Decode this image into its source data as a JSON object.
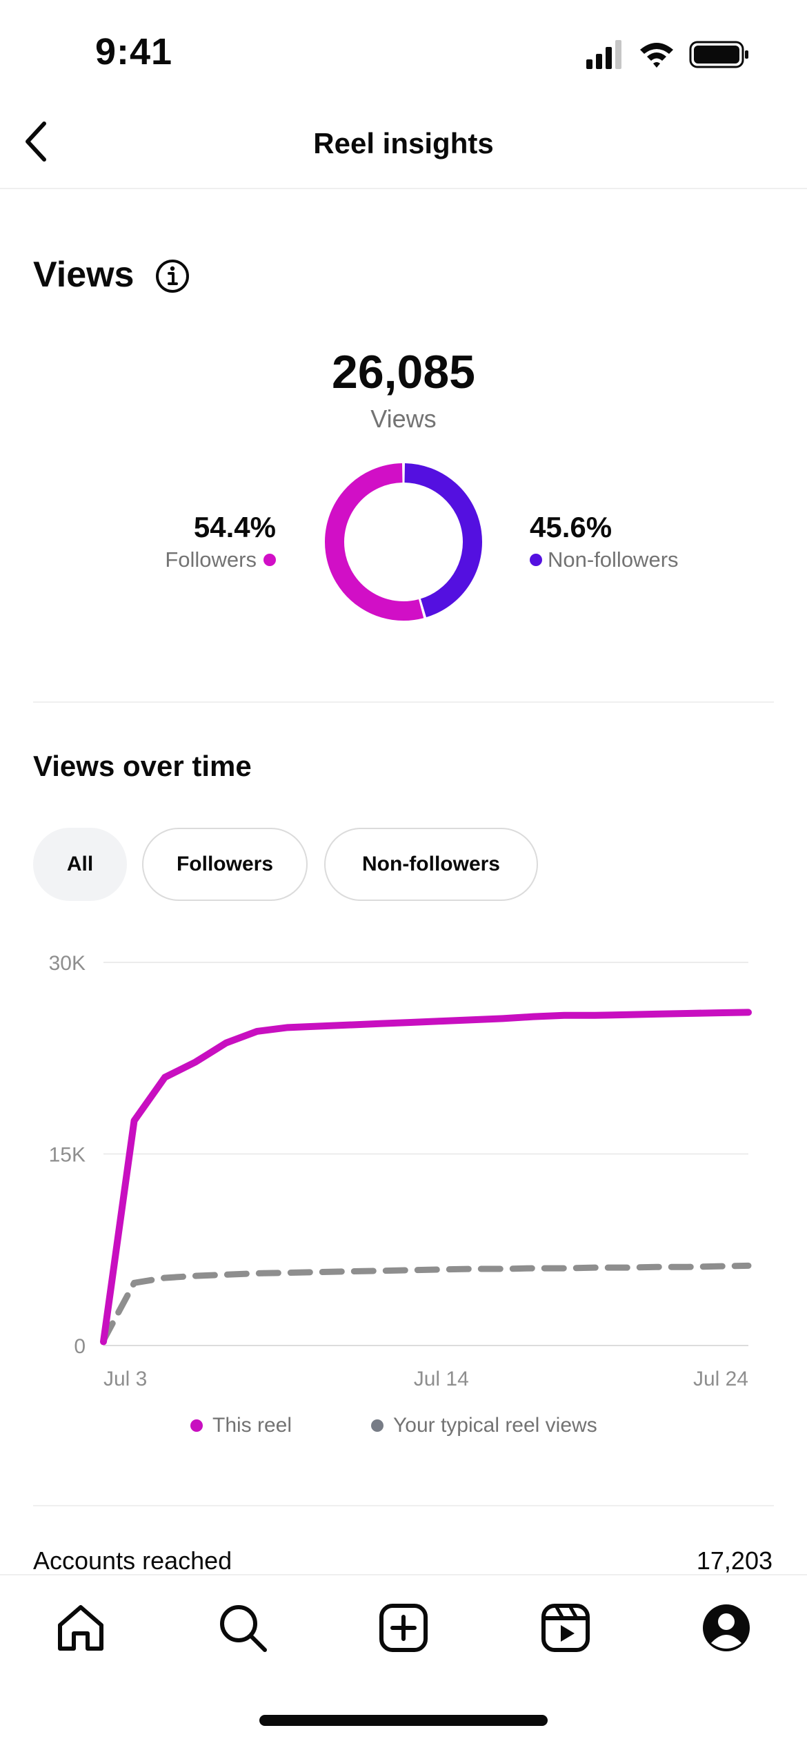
{
  "status_bar": {
    "time": "9:41"
  },
  "nav": {
    "title": "Reel insights"
  },
  "views": {
    "heading": "Views",
    "total": "26,085",
    "total_label": "Views",
    "followers": {
      "percent": "54.4%",
      "label": "Followers",
      "fraction": 0.544,
      "color": "#d10fc6"
    },
    "non_followers": {
      "percent": "45.6%",
      "label": "Non-followers",
      "fraction": 0.456,
      "color": "#5410e0"
    }
  },
  "views_over_time": {
    "heading": "Views over time",
    "filters": [
      {
        "label": "All",
        "selected": true
      },
      {
        "label": "Followers",
        "selected": false
      },
      {
        "label": "Non-followers",
        "selected": false
      }
    ]
  },
  "chart_data": {
    "type": "line",
    "x_tick_labels": [
      "Jul 3",
      "Jul 14",
      "Jul 24"
    ],
    "y_tick_labels": [
      "30K",
      "15K",
      "0"
    ],
    "ylim": [
      0,
      30000
    ],
    "x": [
      "Jul 3",
      "Jul 4",
      "Jul 5",
      "Jul 6",
      "Jul 7",
      "Jul 8",
      "Jul 9",
      "Jul 10",
      "Jul 11",
      "Jul 12",
      "Jul 13",
      "Jul 14",
      "Jul 15",
      "Jul 16",
      "Jul 17",
      "Jul 18",
      "Jul 19",
      "Jul 20",
      "Jul 21",
      "Jul 22",
      "Jul 23",
      "Jul 24"
    ],
    "series": [
      {
        "name": "This reel",
        "color": "#c80fc0",
        "style": "solid",
        "values": [
          300,
          17600,
          21000,
          22200,
          23700,
          24600,
          24900,
          25000,
          25100,
          25200,
          25300,
          25400,
          25500,
          25600,
          25750,
          25850,
          25850,
          25900,
          25950,
          26000,
          26050,
          26085
        ]
      },
      {
        "name": "Your typical reel views",
        "color": "#8e8e8e",
        "style": "dashed",
        "values": [
          400,
          4900,
          5300,
          5450,
          5550,
          5650,
          5700,
          5750,
          5800,
          5850,
          5900,
          5950,
          6000,
          6000,
          6050,
          6050,
          6100,
          6100,
          6150,
          6150,
          6200,
          6250
        ]
      }
    ],
    "grid": true,
    "legend_position": "bottom"
  },
  "legend": {
    "this_reel": "This reel",
    "typical": "Your typical reel views"
  },
  "accounts_reached": {
    "label": "Accounts reached",
    "value": "17,203"
  },
  "tabbar": {
    "home": "home-icon",
    "search": "search-icon",
    "create": "create-icon",
    "reels": "reels-icon",
    "profile": "profile-icon"
  }
}
